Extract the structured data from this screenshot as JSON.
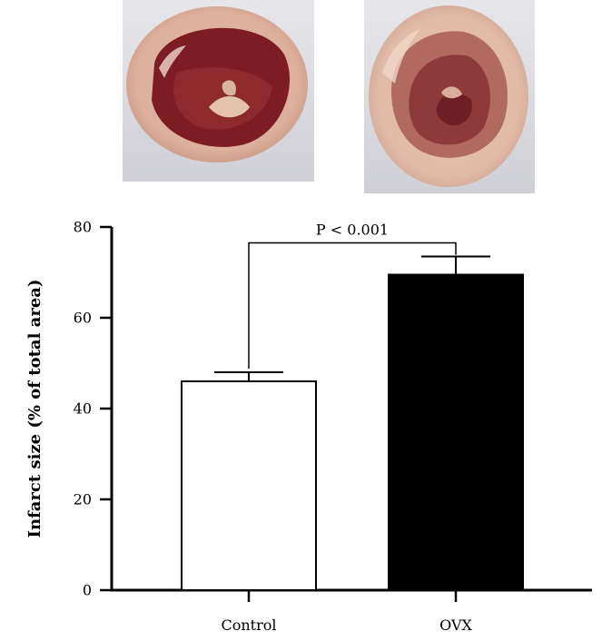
{
  "images": [
    {
      "group": "Control"
    },
    {
      "group": "OVX"
    }
  ],
  "chart_data": {
    "type": "bar",
    "categories": [
      "Control",
      "OVX"
    ],
    "values": [
      46,
      69.5
    ],
    "errors": [
      2,
      4
    ],
    "bar_colors": [
      "#ffffff",
      "#000000"
    ],
    "ylabel": "Infarct size (% of total area)",
    "xlabel": "",
    "ylim": [
      0,
      80
    ],
    "yticks": [
      0,
      20,
      40,
      60,
      80
    ],
    "yticklabels": [
      "0",
      "20",
      "40",
      "60",
      "80"
    ],
    "significance": {
      "label": "P < 0.001",
      "between": [
        "Control",
        "OVX"
      ]
    },
    "grid": false
  }
}
